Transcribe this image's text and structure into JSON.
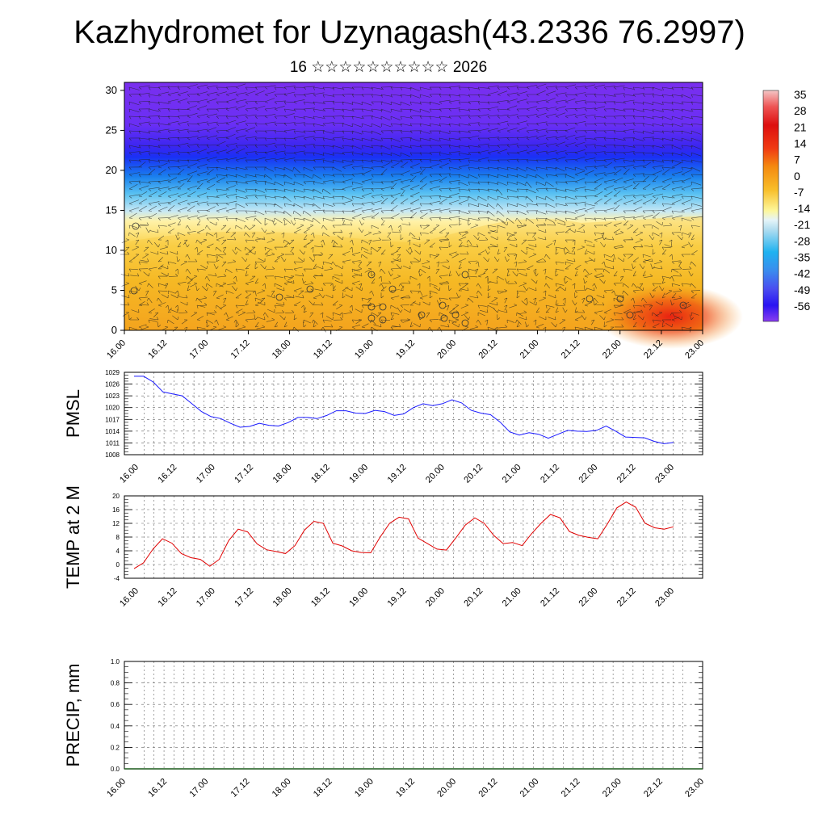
{
  "title": "Kazhydromet for Uzynagash(43.2336 76.2997)",
  "subtitle": "16 ☆☆☆☆☆☆☆☆☆☆ 2026",
  "time_labels": [
    "16.00",
    "16.12",
    "17.00",
    "17.12",
    "18.00",
    "18.12",
    "19.00",
    "19.12",
    "20.00",
    "20.12",
    "21.00",
    "21.12",
    "22.00",
    "22.12",
    "23.00"
  ],
  "colors": {
    "pmsl": "#1a1aff",
    "temp": "#e00000",
    "grid": "#555555"
  },
  "chart_data": [
    {
      "type": "heatmap",
      "name": "vertical-section",
      "y_ticks": [
        0,
        5,
        10,
        15,
        20,
        25,
        30
      ],
      "ylim": [
        0,
        31
      ],
      "colorbar": {
        "labels": [
          "35",
          "28",
          "21",
          "14",
          "7",
          "0",
          "-7",
          "-14",
          "-21",
          "-28",
          "-35",
          "-42",
          "-49",
          "-56"
        ],
        "values": [
          35,
          28,
          21,
          14,
          7,
          0,
          -7,
          -14,
          -21,
          -28,
          -35,
          -42,
          -49,
          -56
        ]
      }
    },
    {
      "type": "line",
      "name": "pmsl",
      "ylabel": "PMSL",
      "y_ticks": [
        "1029",
        "1026",
        "1023",
        "1020",
        "1017",
        "1014",
        "1011",
        "1008"
      ],
      "ylim": [
        1008,
        1029
      ],
      "values": [
        1028,
        1028,
        1026.5,
        1024,
        1023.5,
        1023,
        1021,
        1019,
        1017.7,
        1017.2,
        1016,
        1015,
        1015.2,
        1016,
        1015.5,
        1015.3,
        1016.2,
        1017.5,
        1017.5,
        1017.2,
        1018,
        1019.2,
        1019.2,
        1018.6,
        1018.5,
        1019.3,
        1019,
        1018,
        1018.4,
        1020,
        1021,
        1020.5,
        1021,
        1022,
        1021.2,
        1019.3,
        1018.6,
        1018.2,
        1016.3,
        1013.8,
        1013,
        1013.6,
        1013.2,
        1012.2,
        1013.2,
        1014.2,
        1014,
        1013.9,
        1014.2,
        1015.3,
        1014,
        1012.5,
        1012.4,
        1012.3,
        1011.4,
        1010.8,
        1011.1
      ]
    },
    {
      "type": "line",
      "name": "temp",
      "ylabel": "TEMP at 2 M",
      "y_ticks": [
        "20",
        "16",
        "12",
        "8",
        "4",
        "0",
        "-4"
      ],
      "ylim": [
        -4,
        20
      ],
      "values": [
        -1.2,
        0.5,
        4.5,
        7.5,
        6.2,
        3.2,
        2,
        1.5,
        -0.5,
        1.5,
        7,
        10.3,
        9.5,
        6,
        4.3,
        3.8,
        3.2,
        5.5,
        10,
        12.6,
        12,
        6.2,
        5.4,
        4,
        3.5,
        3.4,
        8,
        12,
        13.8,
        13.3,
        7.7,
        6.1,
        4.5,
        4.2,
        7.8,
        11.5,
        13.6,
        12,
        8.5,
        6.1,
        6.4,
        5.5,
        9,
        12,
        14.6,
        13.6,
        9.6,
        8.5,
        7.9,
        7.5,
        11.8,
        16.5,
        18.2,
        16.7,
        12,
        10.7,
        10.3,
        11
      ]
    },
    {
      "type": "line",
      "name": "precip",
      "ylabel": "PRECIP, mm",
      "y_ticks": [
        "1.0",
        "0.8",
        "0.6",
        "0.4",
        "0.2",
        "0.0"
      ],
      "ylim": [
        0,
        1
      ],
      "values": [
        0,
        0,
        0,
        0,
        0,
        0,
        0,
        0,
        0,
        0,
        0,
        0,
        0,
        0,
        0,
        0,
        0,
        0,
        0,
        0,
        0,
        0,
        0,
        0,
        0,
        0,
        0,
        0,
        0,
        0,
        0,
        0,
        0,
        0,
        0,
        0,
        0,
        0,
        0,
        0,
        0,
        0,
        0,
        0,
        0,
        0,
        0,
        0,
        0,
        0,
        0,
        0,
        0,
        0,
        0,
        0,
        0
      ]
    }
  ]
}
